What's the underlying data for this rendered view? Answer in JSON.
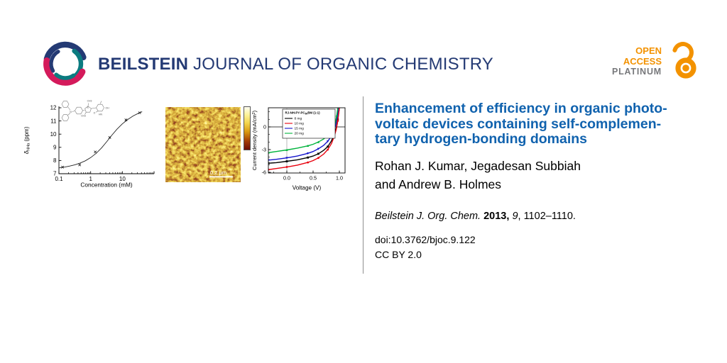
{
  "colors": {
    "navy": "#243A74",
    "teal": "#0B7B80",
    "crimson": "#D41A5B",
    "orange": "#F39200",
    "platinum_gray": "#77787B",
    "title_blue": "#1062AE"
  },
  "header": {
    "brand_bold": "BEILSTEIN",
    "brand_rest": " JOURNAL OF ORGANIC CHEMISTRY",
    "open_access": {
      "line1": "OPEN",
      "line2": "ACCESS",
      "line3": "PLATINUM"
    }
  },
  "article": {
    "title_lines": [
      "Enhancement of efficiency in organic photo-",
      "voltaic devices containing self-complemen-",
      "tary hydrogen-bonding domains"
    ],
    "authors_lines": [
      "Rohan J. Kumar, Jegadesan Subbiah",
      "and Andrew B. Holmes"
    ],
    "citation": {
      "journal": "Beilstein J. Org. Chem.",
      "year": "2013,",
      "volume": "9",
      "pages": ", 1102–1110."
    },
    "doi": "doi:10.3762/bjoc.9.122",
    "license": "CC BY 2.0"
  },
  "figures": {
    "afm": {
      "scale_bar_label": "0.2 μm"
    },
    "structure_labels": {
      "amine_n": "N",
      "thiophene_s": "S",
      "carbonyl_o": "O",
      "amide_hn": "HN",
      "hydroxyl": "OH",
      "methyl": "CH3"
    }
  },
  "chart_data": [
    {
      "id": "nmr",
      "type": "scatter",
      "xlabel": "Concentration (mM)",
      "ylabel_pre": "δ",
      "ylabel_sub": "NHa",
      "ylabel_post": " (ppm)",
      "xscale": "log",
      "xlim": [
        0.1,
        100
      ],
      "ylim": [
        7,
        12
      ],
      "xtick_values": [
        0.1,
        1,
        10,
        100
      ],
      "xtick_labels": [
        "0.1",
        "1",
        "10",
        ""
      ],
      "yticks": [
        7,
        8,
        9,
        10,
        11,
        12
      ],
      "points": [
        [
          0.13,
          7.5
        ],
        [
          0.45,
          7.67
        ],
        [
          1.4,
          8.65
        ],
        [
          4.0,
          9.75
        ],
        [
          13,
          11.08
        ],
        [
          35,
          11.62
        ]
      ],
      "fit_curve": [
        [
          0.1,
          7.44
        ],
        [
          0.15,
          7.5
        ],
        [
          0.22,
          7.58
        ],
        [
          0.32,
          7.68
        ],
        [
          0.47,
          7.81
        ],
        [
          0.68,
          7.98
        ],
        [
          1.0,
          8.22
        ],
        [
          1.5,
          8.55
        ],
        [
          2.2,
          8.95
        ],
        [
          3.2,
          9.42
        ],
        [
          4.7,
          9.93
        ],
        [
          6.8,
          10.38
        ],
        [
          10,
          10.78
        ],
        [
          15,
          11.12
        ],
        [
          22,
          11.38
        ],
        [
          32,
          11.58
        ],
        [
          42,
          11.7
        ]
      ]
    },
    {
      "id": "jv",
      "type": "line",
      "xlabel": "Voltage (V)",
      "ylabel_pre": "Current density (mA/cm",
      "ylabel_sup": "2",
      "ylabel_post": ")",
      "xlim": [
        -0.35,
        1.11
      ],
      "ylim": [
        -6.1,
        2.53
      ],
      "xtick_values": [
        0,
        0.5,
        1
      ],
      "xtick_labels": [
        "0.0",
        "0.5",
        "1.0"
      ],
      "ytick_values": [
        0,
        -3,
        -6
      ],
      "ytick_labels": [
        "0",
        "-3",
        "-6"
      ],
      "legend_title_pre": "RJ-NH-PY-PC",
      "legend_title_sub": "60",
      "legend_title_post": "BM (1:1)",
      "series": [
        {
          "name": "8 mg",
          "color": "#000000",
          "marker": "square",
          "points": [
            [
              -0.35,
              -4.8
            ],
            [
              -0.2,
              -4.72
            ],
            [
              0,
              -4.55
            ],
            [
              0.2,
              -4.35
            ],
            [
              0.4,
              -4.05
            ],
            [
              0.5,
              -3.85
            ],
            [
              0.6,
              -3.55
            ],
            [
              0.7,
              -3.1
            ],
            [
              0.78,
              -2.6
            ],
            [
              0.85,
              -1.85
            ],
            [
              0.9,
              -1.05
            ],
            [
              0.94,
              -0.1
            ],
            [
              0.97,
              1.0
            ],
            [
              1.0,
              2.5
            ]
          ]
        },
        {
          "name": "10 mg",
          "color": "#E8000D",
          "marker": "circle",
          "points": [
            [
              -0.35,
              -5.65
            ],
            [
              -0.2,
              -5.5
            ],
            [
              0,
              -5.3
            ],
            [
              0.2,
              -5.05
            ],
            [
              0.4,
              -4.7
            ],
            [
              0.5,
              -4.45
            ],
            [
              0.6,
              -4.1
            ],
            [
              0.7,
              -3.6
            ],
            [
              0.78,
              -3.0
            ],
            [
              0.85,
              -2.2
            ],
            [
              0.9,
              -1.3
            ],
            [
              0.94,
              -0.35
            ],
            [
              0.97,
              0.8
            ],
            [
              1.0,
              2.5
            ]
          ]
        },
        {
          "name": "15 mg",
          "color": "#1414CC",
          "marker": "triangle-down",
          "points": [
            [
              -0.35,
              -4.4
            ],
            [
              -0.2,
              -4.28
            ],
            [
              0,
              -4.1
            ],
            [
              0.2,
              -3.85
            ],
            [
              0.4,
              -3.5
            ],
            [
              0.5,
              -3.25
            ],
            [
              0.6,
              -2.9
            ],
            [
              0.7,
              -2.45
            ],
            [
              0.78,
              -1.9
            ],
            [
              0.85,
              -1.2
            ],
            [
              0.9,
              -0.45
            ],
            [
              0.93,
              0.3
            ],
            [
              0.96,
              1.4
            ],
            [
              0.98,
              2.5
            ]
          ]
        },
        {
          "name": "20 mg",
          "color": "#00B33C",
          "marker": "triangle-up",
          "points": [
            [
              -0.35,
              -3.4
            ],
            [
              -0.2,
              -3.25
            ],
            [
              0,
              -3.05
            ],
            [
              0.2,
              -2.8
            ],
            [
              0.4,
              -2.5
            ],
            [
              0.5,
              -2.3
            ],
            [
              0.6,
              -2.0
            ],
            [
              0.7,
              -1.6
            ],
            [
              0.78,
              -1.15
            ],
            [
              0.85,
              -0.6
            ],
            [
              0.89,
              -0.1
            ],
            [
              0.92,
              0.5
            ],
            [
              0.95,
              1.5
            ],
            [
              0.97,
              2.5
            ]
          ]
        }
      ]
    }
  ]
}
